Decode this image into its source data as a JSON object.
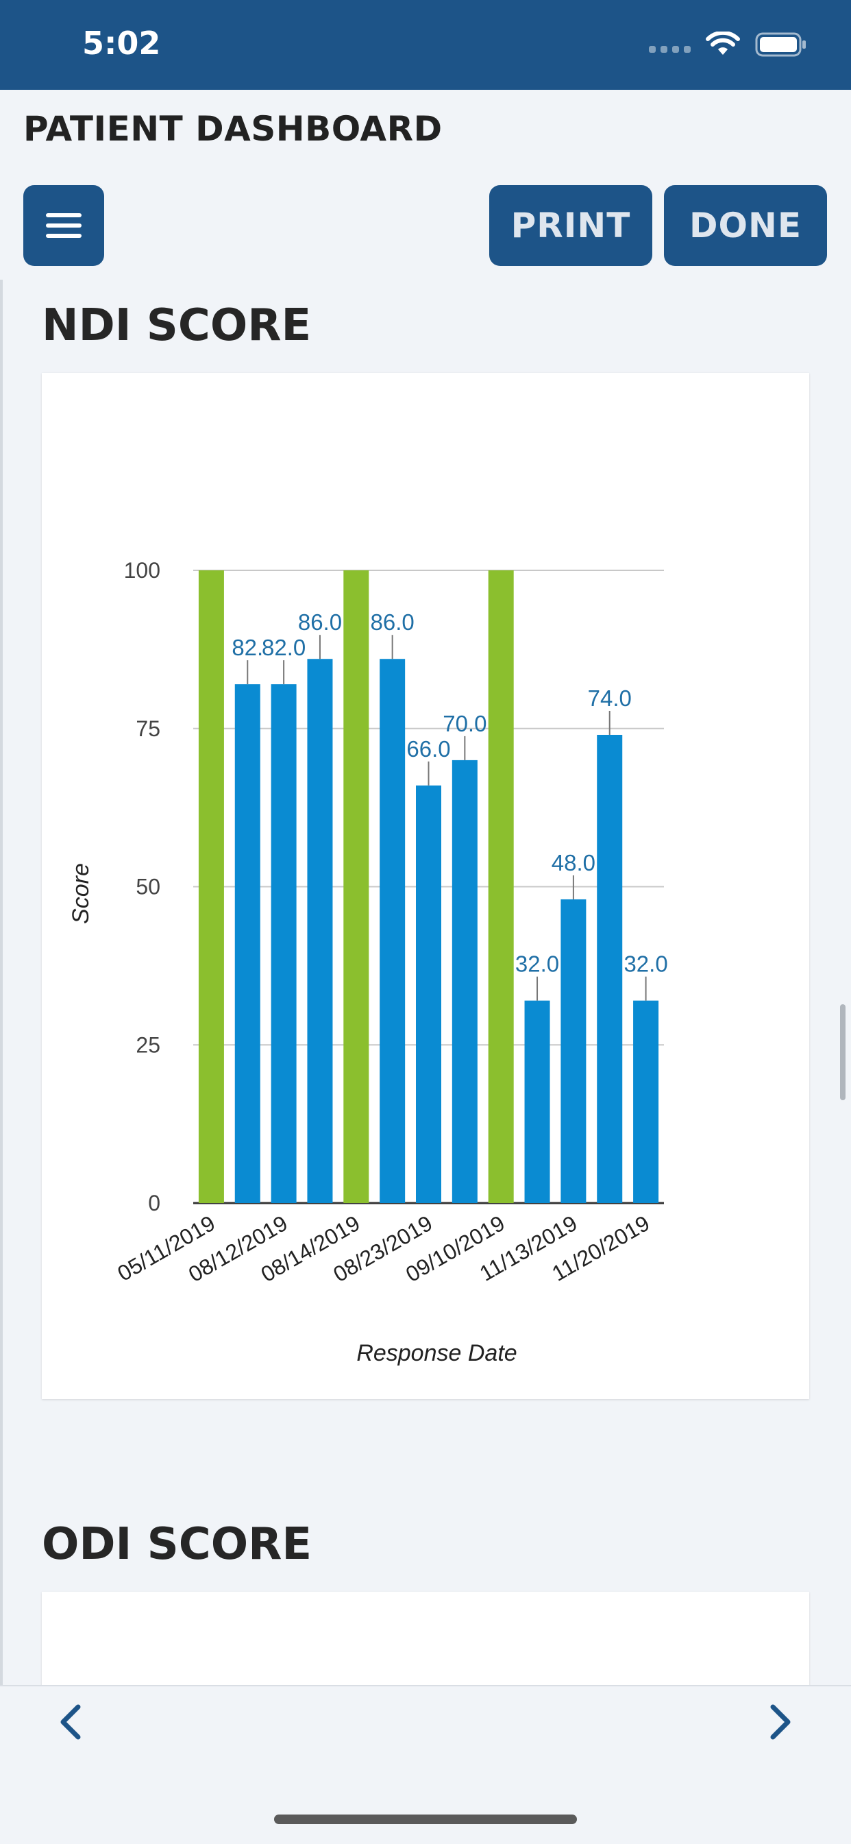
{
  "status": {
    "time": "5:02"
  },
  "header": {
    "title": "PATIENT DASHBOARD",
    "print_label": "PRINT",
    "done_label": "DONE"
  },
  "sections": [
    {
      "title": "NDI SCORE"
    },
    {
      "title": "ODI SCORE"
    }
  ],
  "colors": {
    "header": "#1d5488",
    "bar_blue": "#0a8bd2",
    "bar_green": "#8bbf2e",
    "label_blue": "#1f6fa6"
  },
  "icons": {
    "menu": "hamburger-icon",
    "prev": "chevron-left-icon",
    "next": "chevron-right-icon",
    "wifi": "wifi-icon",
    "battery": "battery-icon"
  },
  "chart_data": {
    "type": "bar",
    "title": "",
    "xlabel": "Response Date",
    "ylabel": "Score",
    "ylim": [
      0,
      100
    ],
    "yticks": [
      0,
      25,
      50,
      75,
      100
    ],
    "grid": true,
    "categories_shown": [
      "05/11/2019",
      "08/12/2019",
      "08/14/2019",
      "08/23/2019",
      "09/10/2019",
      "11/13/2019",
      "11/20/2019"
    ],
    "bars": [
      {
        "value": 100,
        "color": "green",
        "label": ""
      },
      {
        "value": 82,
        "color": "blue",
        "label": "82."
      },
      {
        "value": 82,
        "color": "blue",
        "label": "82.0"
      },
      {
        "value": 86,
        "color": "blue",
        "label": "86.0"
      },
      {
        "value": 100,
        "color": "green",
        "label": ""
      },
      {
        "value": 86,
        "color": "blue",
        "label": "86.0"
      },
      {
        "value": 66,
        "color": "blue",
        "label": "66.0"
      },
      {
        "value": 70,
        "color": "blue",
        "label": "70.0"
      },
      {
        "value": 100,
        "color": "green",
        "label": ""
      },
      {
        "value": 32,
        "color": "blue",
        "label": "32.0"
      },
      {
        "value": 48,
        "color": "blue",
        "label": "48.0"
      },
      {
        "value": 74,
        "color": "blue",
        "label": "74.0"
      },
      {
        "value": 32,
        "color": "blue",
        "label": "32.0"
      }
    ]
  }
}
